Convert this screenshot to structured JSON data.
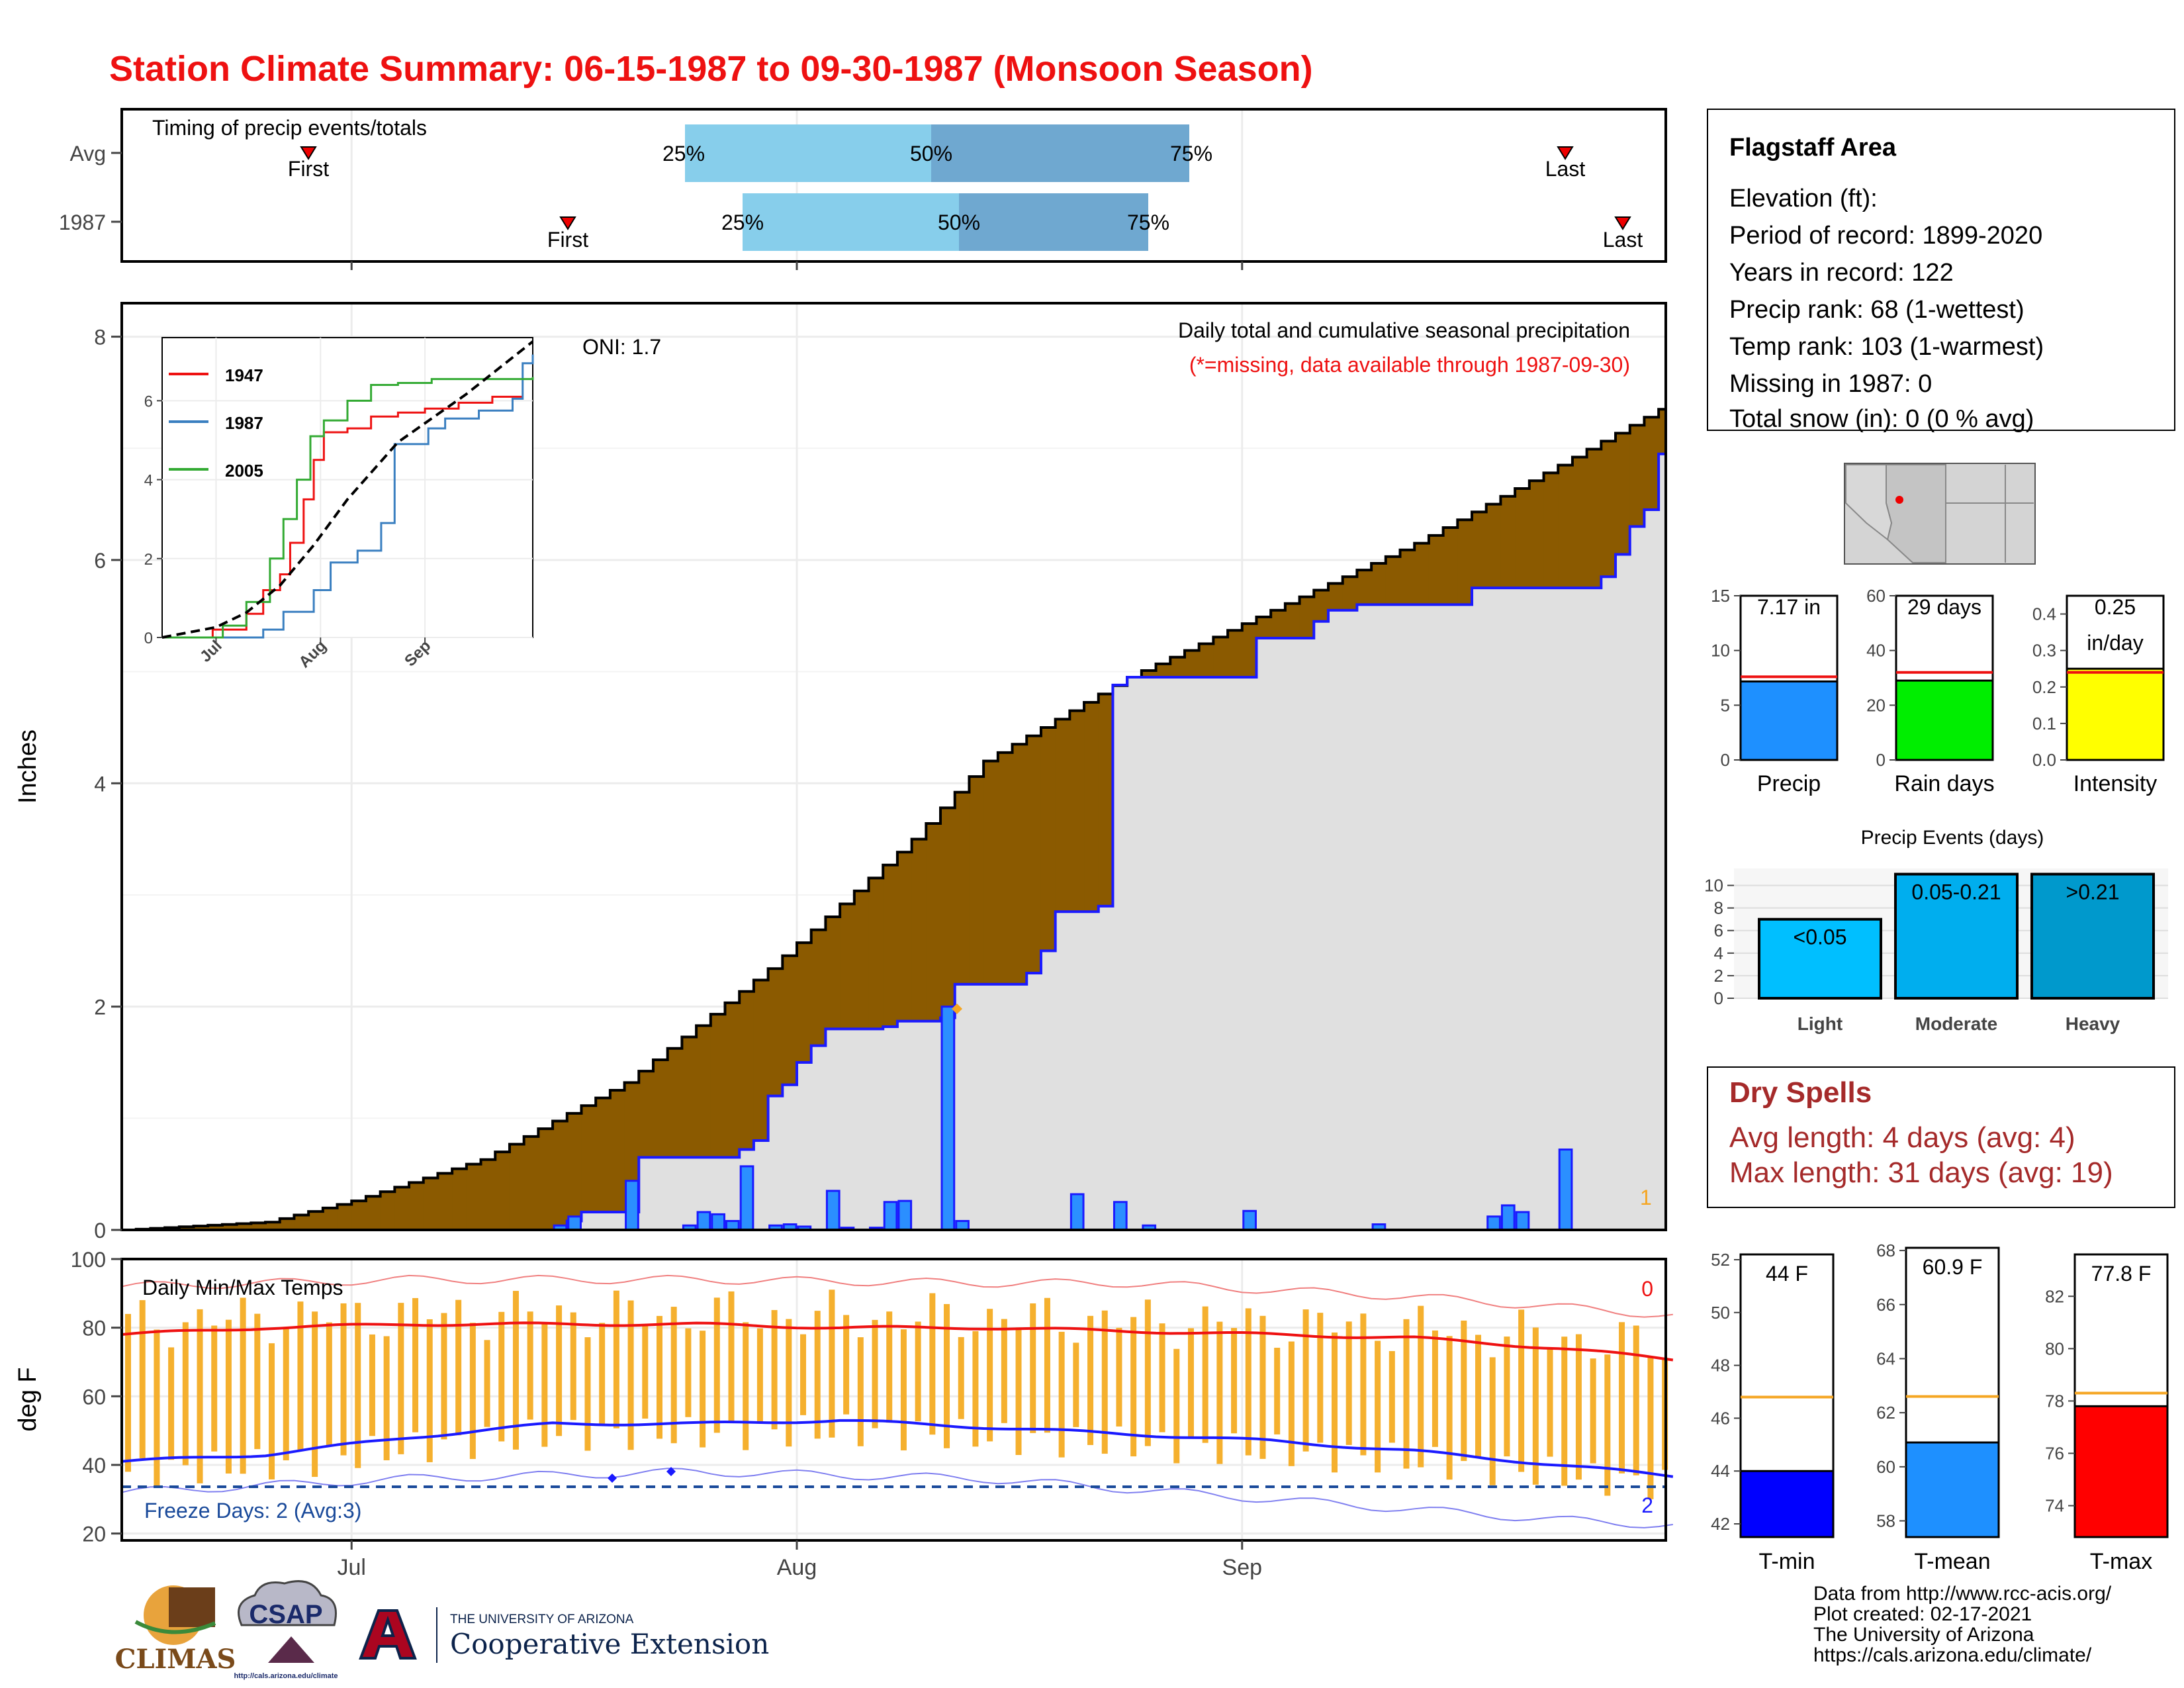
{
  "title": "Station Climate Summary: 06-15-1987 to 09-30-1987 (Monsoon Season)",
  "colors": {
    "title": "#ee1111",
    "brown": "#8b5a00",
    "green": "#118811",
    "blue_line": "#1a1aff",
    "bar_blue": "#2b8fff",
    "light_gray": "#e0e0e0",
    "orange": "#f5a623",
    "red": "#ee1111"
  },
  "timing_panel": {
    "label": "Timing of precip events/totals",
    "row_labels": [
      "Avg",
      "1987"
    ],
    "pct_labels": [
      "25%",
      "50%",
      "75%"
    ],
    "first_label": "First",
    "last_label": "Last"
  },
  "month_labels": [
    "Jul",
    "Aug",
    "Sep"
  ],
  "precip_panel": {
    "ylabel": "Inches",
    "y_ticks": [
      "0",
      "2",
      "4",
      "6",
      "8"
    ],
    "oni": "ONI: 1.7",
    "subtitle": "Daily total and cumulative seasonal precipitation",
    "missing_note": "(*=missing, data available through 1987-09-30)",
    "corner_count": "1"
  },
  "inset": {
    "y_ticks": [
      "0",
      "2",
      "4",
      "6"
    ],
    "x_ticks": [
      "Jul",
      "Aug",
      "Sep"
    ],
    "legend": [
      "1947",
      "1987",
      "2005"
    ]
  },
  "temp_panel": {
    "ylabel": "deg F",
    "y_ticks": [
      "20",
      "40",
      "60",
      "80",
      "100"
    ],
    "label": "Daily Min/Max Temps",
    "freeze_label": "Freeze Days: 2 (Avg:3)",
    "count_top": "0",
    "count_bottom": "2"
  },
  "station_info": {
    "name": "Flagstaff Area",
    "lines": [
      "Elevation (ft):",
      "Period of record: 1899-2020",
      "Years in record: 122",
      "Precip rank: 68 (1-wettest)",
      "Temp rank: 103 (1-warmest)",
      "Missing in 1987: 0",
      "Total snow (in): 0 (0 % avg)"
    ]
  },
  "summary_bars": [
    {
      "label": "Precip",
      "value_text": "7.17 in",
      "value": 7.17,
      "avg": 7.6,
      "ymax": 15,
      "ticks": [
        "0",
        "5",
        "10",
        "15"
      ],
      "tick_vals": [
        0,
        5,
        10,
        15
      ],
      "color": "#1e90ff"
    },
    {
      "label": "Rain days",
      "value_text": "29 days",
      "value": 29,
      "avg": 32,
      "ymax": 60,
      "ticks": [
        "0",
        "20",
        "40",
        "60"
      ],
      "tick_vals": [
        0,
        20,
        40,
        60
      ],
      "color": "#00ee00"
    },
    {
      "label": "Intensity",
      "value_text": "0.25",
      "value_text2": "in/day",
      "value": 0.25,
      "avg": 0.24,
      "ymax": 0.45,
      "ticks": [
        "0.0",
        "0.1",
        "0.2",
        "0.3",
        "0.4"
      ],
      "tick_vals": [
        0,
        0.1,
        0.2,
        0.3,
        0.4
      ],
      "color": "#ffff00"
    }
  ],
  "precip_events": {
    "title": "Precip Events (days)",
    "ticks": [
      "0",
      "2",
      "4",
      "6",
      "8",
      "10"
    ],
    "bars": [
      {
        "category": "Light",
        "label": "<0.05",
        "value": 7,
        "color": "#00bfff"
      },
      {
        "category": "Moderate",
        "label": "0.05-0.21",
        "value": 11,
        "color": "#00aeee"
      },
      {
        "category": "Heavy",
        "label": ">0.21",
        "value": 11,
        "color": "#0099cc"
      }
    ]
  },
  "dry_spells": {
    "title": "Dry Spells",
    "avg_line": "Avg length: 4 days (avg: 4)",
    "max_line": "Max length: 31 days (avg: 19)"
  },
  "temp_bars": [
    {
      "label": "T-min",
      "value_text": "44 F",
      "value": 44,
      "avg": 46.8,
      "ymin": 41.5,
      "ymax": 52.2,
      "ticks": [
        "42",
        "44",
        "46",
        "48",
        "50",
        "52"
      ],
      "tick_vals": [
        42,
        44,
        46,
        48,
        50,
        52
      ],
      "color": "#0000ff"
    },
    {
      "label": "T-mean",
      "value_text": "60.9 F",
      "value": 60.9,
      "avg": 62.6,
      "ymin": 57.4,
      "ymax": 68.1,
      "ticks": [
        "58",
        "60",
        "62",
        "64",
        "66",
        "68"
      ],
      "tick_vals": [
        58,
        60,
        62,
        64,
        66,
        68
      ],
      "color": "#1e90ff"
    },
    {
      "label": "T-max",
      "value_text": "77.8 F",
      "value": 77.8,
      "avg": 78.3,
      "ymin": 72.8,
      "ymax": 83.6,
      "ticks": [
        "74",
        "76",
        "78",
        "80",
        "82"
      ],
      "tick_vals": [
        74,
        76,
        78,
        80,
        82
      ],
      "color": "#ff0000"
    }
  ],
  "logos": {
    "climas": "CLIMAS",
    "csap": "CSAP",
    "csap_url": "http://cals.arizona.edu/climate",
    "ua_line1": "THE UNIVERSITY OF ARIZONA",
    "ua_line2": "Cooperative Extension"
  },
  "credits": [
    "Data from http://www.rcc-acis.org/",
    "Plot created: 02-17-2021",
    "The University of Arizona",
    "https://cals.arizona.edu/climate/"
  ],
  "chart_data": [
    {
      "type": "table",
      "title": "Timing of precip events/totals",
      "rows": [
        {
          "name": "Avg",
          "first": "06-28",
          "q25": "07-29",
          "q50": "08-08",
          "q75": "08-25",
          "last": "09-25"
        },
        {
          "name": "1987",
          "first": "07-16",
          "q25": "08-02",
          "q50": "08-13",
          "q75": "08-21",
          "last": "09-29"
        }
      ]
    },
    {
      "type": "area",
      "title": "Daily total and cumulative seasonal precipitation",
      "xlabel": "",
      "ylabel": "Inches",
      "x_range": [
        "06-15",
        "09-30"
      ],
      "ylim": [
        0,
        8.3
      ],
      "series": [
        {
          "name": "Average cumulative",
          "points": [
            [
              0,
              0.0
            ],
            [
              10,
              0.07
            ],
            [
              16,
              0.26
            ],
            [
              25,
              0.63
            ],
            [
              35,
              1.32
            ],
            [
              45,
              2.34
            ],
            [
              55,
              3.5
            ],
            [
              60,
              4.2
            ],
            [
              70,
              4.95
            ],
            [
              80,
              5.55
            ],
            [
              90,
              6.15
            ],
            [
              100,
              6.85
            ],
            [
              107,
              7.35
            ]
          ]
        },
        {
          "name": "1987 cumulative",
          "points": [
            [
              0,
              0.0
            ],
            [
              30,
              0.0
            ],
            [
              31,
              0.08
            ],
            [
              32,
              0.16
            ],
            [
              35,
              0.16
            ],
            [
              36,
              0.65
            ],
            [
              42,
              0.65
            ],
            [
              43,
              0.72
            ],
            [
              44,
              0.8
            ],
            [
              45,
              1.2
            ],
            [
              46,
              1.3
            ],
            [
              47,
              1.5
            ],
            [
              48,
              1.65
            ],
            [
              49,
              1.8
            ],
            [
              53,
              1.82
            ],
            [
              54,
              1.87
            ],
            [
              57,
              1.9
            ],
            [
              58,
              2.2
            ],
            [
              62,
              2.2
            ],
            [
              63,
              2.3
            ],
            [
              64,
              2.5
            ],
            [
              65,
              2.85
            ],
            [
              68,
              2.9
            ],
            [
              69,
              4.88
            ],
            [
              70,
              4.95
            ],
            [
              78,
              4.95
            ],
            [
              79,
              5.3
            ],
            [
              82,
              5.3
            ],
            [
              83,
              5.45
            ],
            [
              84,
              5.55
            ],
            [
              86,
              5.6
            ],
            [
              93,
              5.6
            ],
            [
              94,
              5.75
            ],
            [
              102,
              5.75
            ],
            [
              103,
              5.85
            ],
            [
              104,
              6.05
            ],
            [
              105,
              6.3
            ],
            [
              106,
              6.45
            ],
            [
              107,
              6.95
            ],
            [
              110,
              7.17
            ]
          ]
        }
      ],
      "daily_precip": [
        [
          30,
          0.04
        ],
        [
          31,
          0.12
        ],
        [
          35,
          0.44
        ],
        [
          39,
          0.04
        ],
        [
          40,
          0.16
        ],
        [
          41,
          0.14
        ],
        [
          42,
          0.08
        ],
        [
          43,
          0.57
        ],
        [
          45,
          0.04
        ],
        [
          46,
          0.05
        ],
        [
          47,
          0.03
        ],
        [
          49,
          0.35
        ],
        [
          50,
          0.02
        ],
        [
          52,
          0.02
        ],
        [
          53,
          0.25
        ],
        [
          54,
          0.26
        ],
        [
          57,
          2.0
        ],
        [
          58,
          0.08
        ],
        [
          66,
          0.32
        ],
        [
          69,
          0.25
        ],
        [
          71,
          0.04
        ],
        [
          78,
          0.17
        ],
        [
          87,
          0.05
        ],
        [
          95,
          0.12
        ],
        [
          96,
          0.22
        ],
        [
          97,
          0.16
        ],
        [
          100,
          0.72
        ]
      ]
    },
    {
      "type": "line",
      "title": "",
      "xlabel": "",
      "ylabel": "",
      "x_ticks": [
        "Jul",
        "Aug",
        "Sep"
      ],
      "ylim": [
        0,
        7.5
      ],
      "series": [
        {
          "name": "1947",
          "points": [
            [
              0,
              0
            ],
            [
              15,
              0.2
            ],
            [
              25,
              0.6
            ],
            [
              30,
              1.2
            ],
            [
              35,
              1.6
            ],
            [
              38,
              2.4
            ],
            [
              42,
              3.5
            ],
            [
              45,
              4.5
            ],
            [
              48,
              5.2
            ],
            [
              55,
              5.3
            ],
            [
              62,
              5.6
            ],
            [
              70,
              5.7
            ],
            [
              78,
              5.8
            ],
            [
              88,
              5.95
            ],
            [
              98,
              6.1
            ],
            [
              107,
              6.1
            ]
          ]
        },
        {
          "name": "1987",
          "points": [
            [
              0,
              0
            ],
            [
              30,
              0.2
            ],
            [
              36,
              0.65
            ],
            [
              45,
              1.2
            ],
            [
              50,
              1.9
            ],
            [
              58,
              2.2
            ],
            [
              65,
              2.9
            ],
            [
              69,
              4.9
            ],
            [
              79,
              5.3
            ],
            [
              84,
              5.55
            ],
            [
              94,
              5.75
            ],
            [
              104,
              6.05
            ],
            [
              107,
              6.95
            ],
            [
              110,
              7.17
            ]
          ]
        },
        {
          "name": "2005",
          "points": [
            [
              0,
              0
            ],
            [
              18,
              0.3
            ],
            [
              25,
              0.9
            ],
            [
              32,
              2.0
            ],
            [
              36,
              3.0
            ],
            [
              40,
              4.0
            ],
            [
              44,
              5.1
            ],
            [
              48,
              5.5
            ],
            [
              55,
              6.0
            ],
            [
              62,
              6.4
            ],
            [
              70,
              6.45
            ],
            [
              80,
              6.55
            ],
            [
              110,
              6.6
            ]
          ]
        },
        {
          "name": "Average",
          "points": [
            [
              0,
              0
            ],
            [
              16,
              0.26
            ],
            [
              25,
              0.63
            ],
            [
              35,
              1.32
            ],
            [
              45,
              2.34
            ],
            [
              55,
              3.5
            ],
            [
              70,
              4.95
            ],
            [
              90,
              6.15
            ],
            [
              110,
              7.5
            ]
          ]
        }
      ]
    },
    {
      "type": "line",
      "title": "Daily Min/Max Temps",
      "ylabel": "deg F",
      "ylim": [
        18,
        100
      ],
      "series": [
        {
          "name": "Avg max",
          "points": [
            [
              0,
              78
            ],
            [
              10,
              80
            ],
            [
              20,
              81
            ],
            [
              30,
              81
            ],
            [
              40,
              81
            ],
            [
              50,
              80
            ],
            [
              60,
              80
            ],
            [
              70,
              79
            ],
            [
              80,
              78
            ],
            [
              90,
              77
            ],
            [
              100,
              74
            ],
            [
              110,
              70
            ]
          ]
        },
        {
          "name": "Avg min",
          "points": [
            [
              0,
              41
            ],
            [
              10,
              43
            ],
            [
              20,
              48
            ],
            [
              30,
              52
            ],
            [
              40,
              52
            ],
            [
              50,
              53
            ],
            [
              60,
              51
            ],
            [
              70,
              49
            ],
            [
              80,
              47
            ],
            [
              90,
              44
            ],
            [
              100,
              40
            ],
            [
              110,
              36
            ]
          ]
        },
        {
          "name": "Record max",
          "points": [
            [
              0,
              92
            ],
            [
              20,
              94
            ],
            [
              40,
              94
            ],
            [
              60,
              93
            ],
            [
              70,
              93
            ],
            [
              90,
              89
            ],
            [
              110,
              83
            ]
          ]
        },
        {
          "name": "Record min",
          "points": [
            [
              0,
              32
            ],
            [
              20,
              36
            ],
            [
              40,
              38
            ],
            [
              60,
              36
            ],
            [
              80,
              30
            ],
            [
              100,
              24
            ],
            [
              110,
              22
            ]
          ]
        }
      ],
      "freeze_line": 32,
      "freeze_days": 2
    },
    {
      "type": "bar",
      "categories": [
        "Precip",
        "Rain days",
        "Intensity"
      ],
      "values": [
        7.17,
        29,
        0.25
      ]
    },
    {
      "type": "bar",
      "title": "Precip Events (days)",
      "categories": [
        "Light",
        "Moderate",
        "Heavy"
      ],
      "values": [
        7,
        11,
        11
      ]
    },
    {
      "type": "bar",
      "categories": [
        "T-min",
        "T-mean",
        "T-max"
      ],
      "values": [
        44,
        60.9,
        77.8
      ]
    }
  ]
}
